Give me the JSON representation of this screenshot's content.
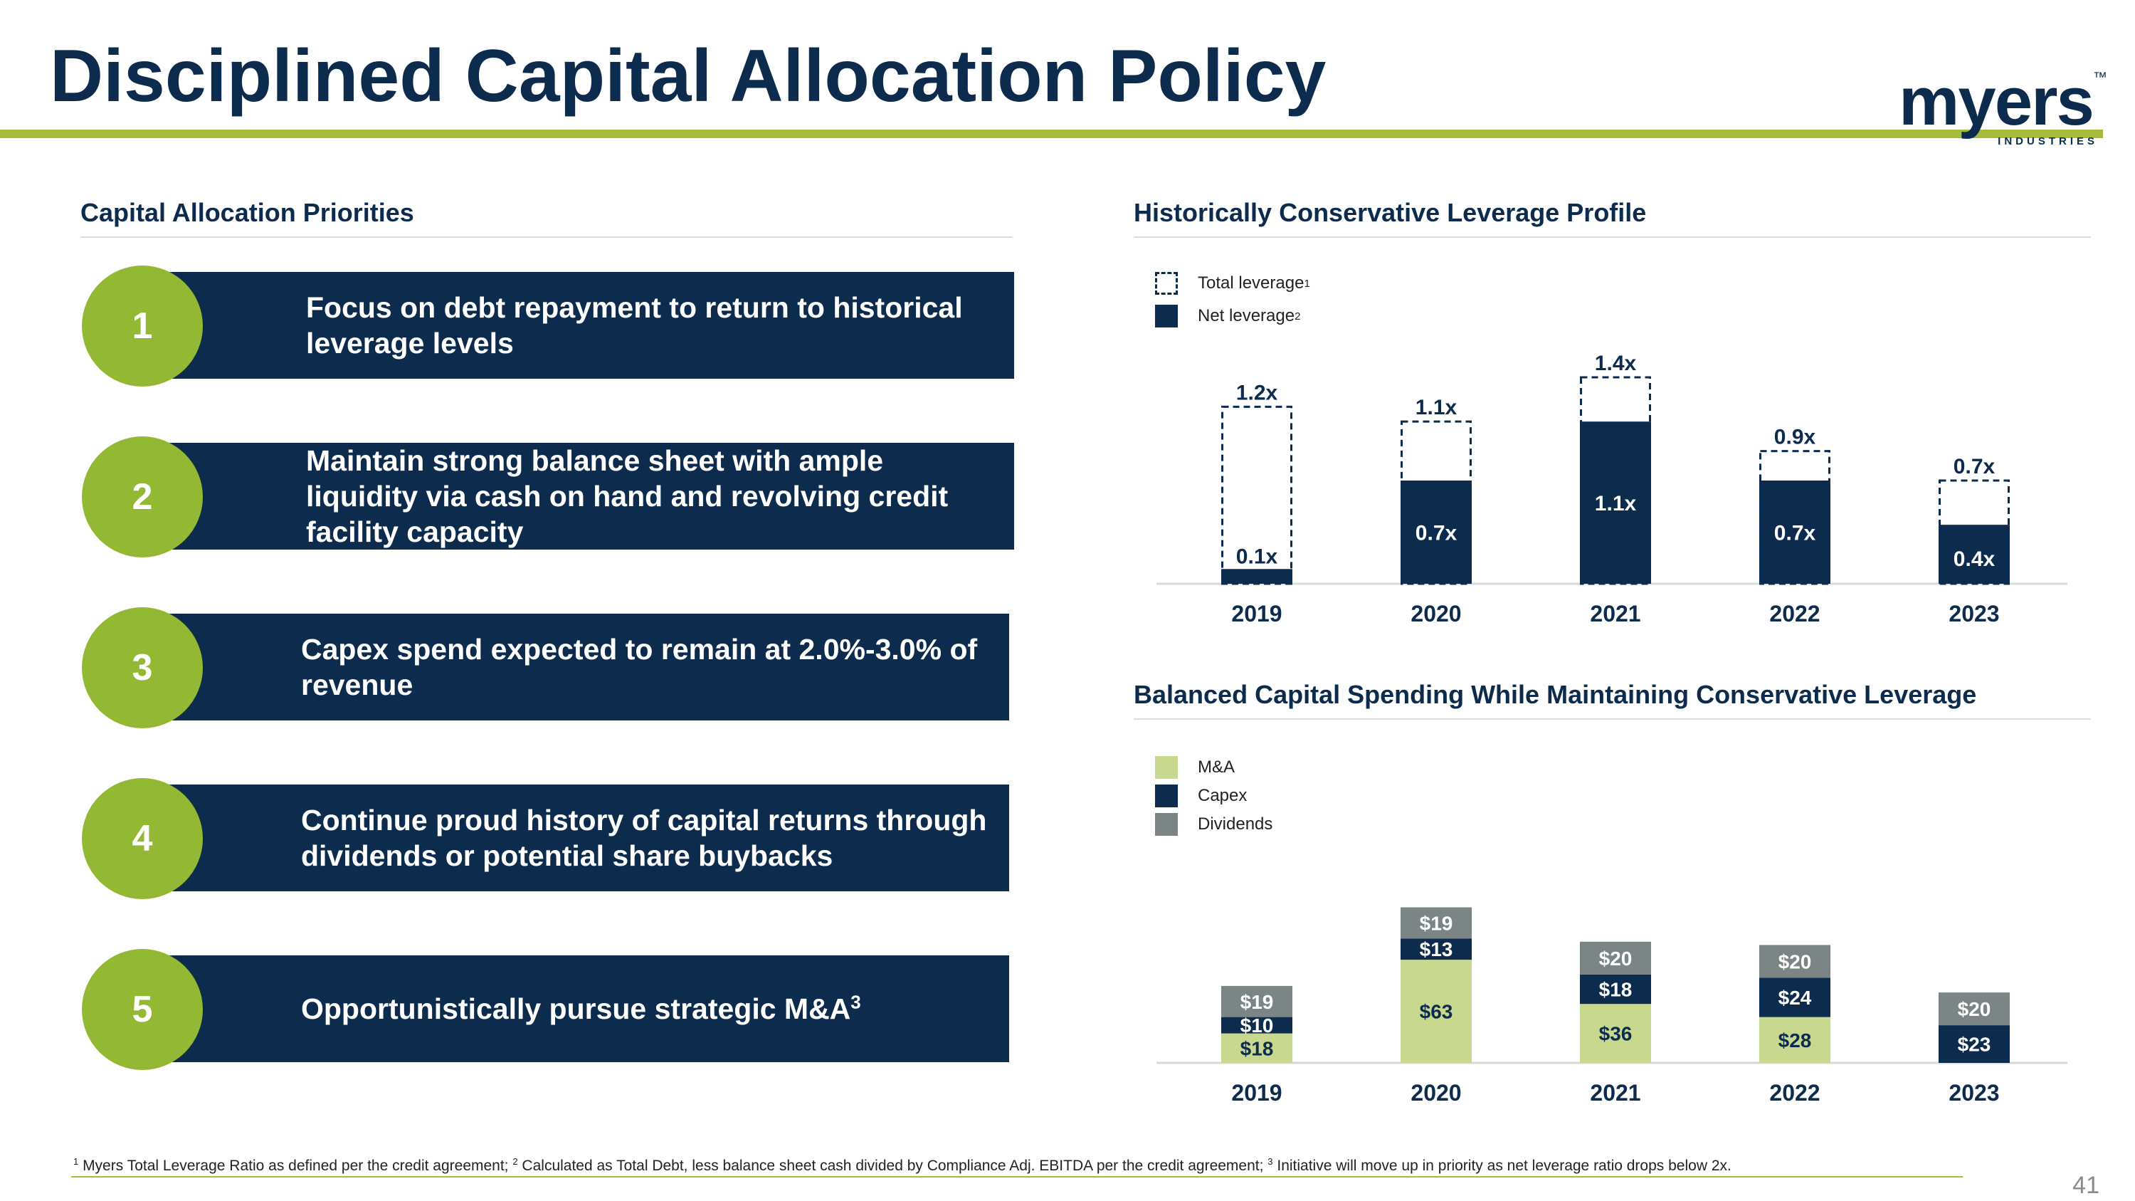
{
  "title": "Disciplined Capital Allocation Policy",
  "logo": {
    "word": "myers",
    "tm": "™",
    "sub": "INDUSTRIES"
  },
  "left": {
    "heading": "Capital Allocation Priorities",
    "priorities": [
      {
        "number": "1",
        "text": "Focus on debt repayment to return to historical leverage levels"
      },
      {
        "number": "2",
        "text": "Maintain strong balance sheet with ample liquidity via cash on hand and revolving credit facility capacity"
      },
      {
        "number": "3",
        "text": "Capex spend expected to remain at 2.0%-3.0% of revenue"
      },
      {
        "number": "4",
        "text": "Continue proud history of capital returns through dividends or potential share buybacks"
      },
      {
        "number": "5",
        "text": "Opportunistically pursue strategic M&A",
        "sup": "3"
      }
    ]
  },
  "colors": {
    "navy": "#0d2c4d",
    "green": "#93b934",
    "light_green": "#c9d88f",
    "gray": "#7b8585",
    "rule": "#a5bc3d"
  },
  "chart_data": [
    {
      "type": "bar",
      "title": "Historically Conservative Leverage Profile",
      "categories": [
        "2019",
        "2020",
        "2021",
        "2022",
        "2023"
      ],
      "series": [
        {
          "name": "Total leverage",
          "sup": "1",
          "style": "dashed-outline",
          "values": [
            1.2,
            1.1,
            1.4,
            0.9,
            0.7
          ],
          "labels": [
            "1.2x",
            "1.1x",
            "1.4x",
            "0.9x",
            "0.7x"
          ]
        },
        {
          "name": "Net leverage",
          "sup": "2",
          "style": "solid",
          "values": [
            0.1,
            0.7,
            1.1,
            0.7,
            0.4
          ],
          "labels": [
            "0.1x",
            "0.7x",
            "1.1x",
            "0.7x",
            "0.4x"
          ]
        }
      ],
      "ylim": [
        0,
        1.4
      ]
    },
    {
      "type": "bar",
      "stacked": true,
      "title": "Balanced Capital Spending While Maintaining Conservative Leverage",
      "categories": [
        "2019",
        "2020",
        "2021",
        "2022",
        "2023"
      ],
      "series": [
        {
          "name": "M&A",
          "values": [
            18,
            63,
            36,
            28,
            0
          ],
          "labels": [
            "$18",
            "$63",
            "$36",
            "$28",
            ""
          ]
        },
        {
          "name": "Capex",
          "values": [
            10,
            13,
            18,
            24,
            23
          ],
          "labels": [
            "$10",
            "$13",
            "$18",
            "$24",
            "$23"
          ]
        },
        {
          "name": "Dividends",
          "values": [
            19,
            19,
            20,
            20,
            20
          ],
          "labels": [
            "$19",
            "$19",
            "$20",
            "$20",
            "$20"
          ]
        }
      ],
      "ylim": [
        0,
        95
      ]
    }
  ],
  "footnote": {
    "s1": "1",
    "t1": " Myers Total Leverage Ratio as defined per the credit agreement; ",
    "s2": "2",
    "t2": " Calculated as Total Debt, less balance sheet cash divided by Compliance Adj. EBITDA per the credit agreement; ",
    "s3": "3",
    "t3": " Initiative will move up in priority as net leverage ratio drops below 2x."
  },
  "page_number": "41"
}
